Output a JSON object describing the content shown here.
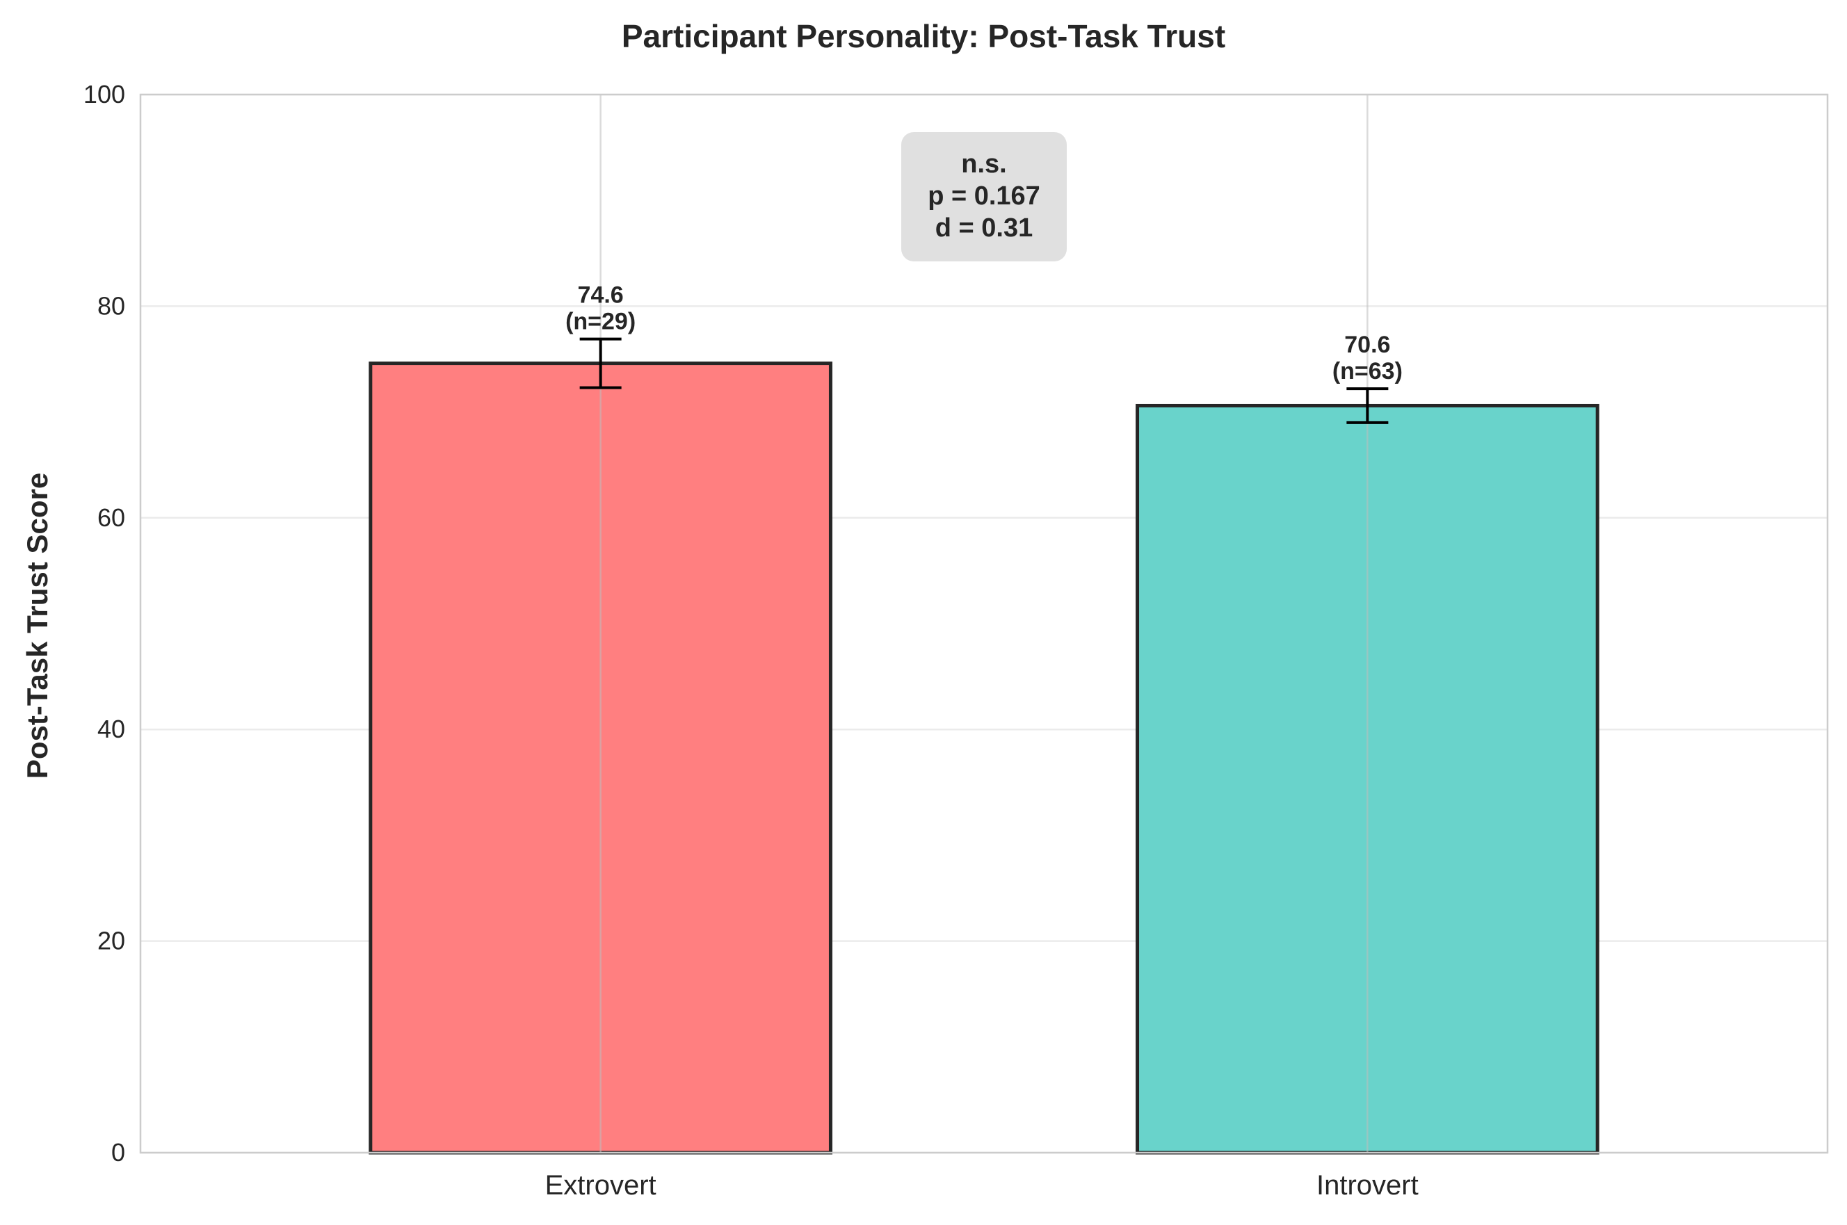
{
  "chart_data": {
    "type": "bar",
    "title": "Participant Personality: Post-Task Trust",
    "xlabel": "",
    "ylabel": "Post-Task Trust Score",
    "ylim": [
      0,
      100
    ],
    "yticks": [
      0,
      20,
      40,
      60,
      80,
      100
    ],
    "categories": [
      "Extrovert",
      "Introvert"
    ],
    "values": [
      74.6,
      70.6
    ],
    "error": [
      2.3,
      1.6
    ],
    "n": [
      29,
      63
    ],
    "value_labels": [
      "74.6",
      "70.6"
    ],
    "n_labels": [
      "(n=29)",
      "(n=63)"
    ],
    "colors": [
      "#ff7f80",
      "#69d3cb"
    ],
    "grid": true,
    "annotation": {
      "lines": [
        "n.s.",
        "p = 0.167",
        "d = 0.31"
      ]
    }
  }
}
